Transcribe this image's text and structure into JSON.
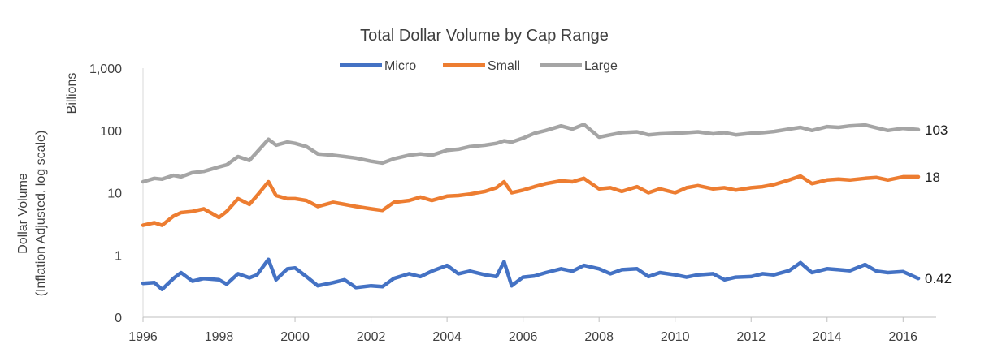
{
  "chart_data": {
    "type": "line",
    "title": "Total Dollar Volume by Cap Range",
    "ylabel_line1": "Dollar Volume",
    "ylabel_line2": "(Inflation Adjusted, log scale)",
    "y_unit": "Billions",
    "y_scale": "log",
    "ylim": [
      0.1,
      1000
    ],
    "xlim": [
      1996,
      2016.4
    ],
    "y_ticks": [
      {
        "value": 0.1,
        "label": "0"
      },
      {
        "value": 1,
        "label": "1"
      },
      {
        "value": 10,
        "label": "10"
      },
      {
        "value": 100,
        "label": "100"
      },
      {
        "value": 1000,
        "label": "1,000"
      }
    ],
    "x_ticks": [
      1996,
      1998,
      2000,
      2002,
      2004,
      2006,
      2008,
      2010,
      2012,
      2014,
      2016
    ],
    "grid": false,
    "legend_position": "top-center",
    "series": [
      {
        "name": "Micro",
        "color": "#4472c4",
        "end_label": "0.42",
        "points": [
          [
            1996.0,
            0.35
          ],
          [
            1996.3,
            0.36
          ],
          [
            1996.5,
            0.28
          ],
          [
            1996.8,
            0.42
          ],
          [
            1997.0,
            0.52
          ],
          [
            1997.3,
            0.38
          ],
          [
            1997.6,
            0.42
          ],
          [
            1998.0,
            0.4
          ],
          [
            1998.2,
            0.34
          ],
          [
            1998.5,
            0.5
          ],
          [
            1998.8,
            0.43
          ],
          [
            1999.0,
            0.48
          ],
          [
            1999.3,
            0.85
          ],
          [
            1999.5,
            0.4
          ],
          [
            1999.8,
            0.6
          ],
          [
            2000.0,
            0.62
          ],
          [
            2000.3,
            0.45
          ],
          [
            2000.6,
            0.32
          ],
          [
            2001.0,
            0.36
          ],
          [
            2001.3,
            0.4
          ],
          [
            2001.6,
            0.3
          ],
          [
            2002.0,
            0.32
          ],
          [
            2002.3,
            0.31
          ],
          [
            2002.6,
            0.42
          ],
          [
            2003.0,
            0.5
          ],
          [
            2003.3,
            0.45
          ],
          [
            2003.6,
            0.55
          ],
          [
            2004.0,
            0.68
          ],
          [
            2004.3,
            0.5
          ],
          [
            2004.6,
            0.55
          ],
          [
            2005.0,
            0.48
          ],
          [
            2005.3,
            0.45
          ],
          [
            2005.5,
            0.78
          ],
          [
            2005.7,
            0.32
          ],
          [
            2006.0,
            0.44
          ],
          [
            2006.3,
            0.46
          ],
          [
            2006.6,
            0.52
          ],
          [
            2007.0,
            0.6
          ],
          [
            2007.3,
            0.55
          ],
          [
            2007.6,
            0.68
          ],
          [
            2008.0,
            0.6
          ],
          [
            2008.3,
            0.5
          ],
          [
            2008.6,
            0.58
          ],
          [
            2009.0,
            0.6
          ],
          [
            2009.3,
            0.45
          ],
          [
            2009.6,
            0.52
          ],
          [
            2010.0,
            0.48
          ],
          [
            2010.3,
            0.44
          ],
          [
            2010.6,
            0.48
          ],
          [
            2011.0,
            0.5
          ],
          [
            2011.3,
            0.4
          ],
          [
            2011.6,
            0.44
          ],
          [
            2012.0,
            0.45
          ],
          [
            2012.3,
            0.5
          ],
          [
            2012.6,
            0.48
          ],
          [
            2013.0,
            0.56
          ],
          [
            2013.3,
            0.75
          ],
          [
            2013.6,
            0.52
          ],
          [
            2014.0,
            0.6
          ],
          [
            2014.3,
            0.58
          ],
          [
            2014.6,
            0.56
          ],
          [
            2015.0,
            0.7
          ],
          [
            2015.3,
            0.55
          ],
          [
            2015.6,
            0.52
          ],
          [
            2016.0,
            0.54
          ],
          [
            2016.4,
            0.42
          ]
        ]
      },
      {
        "name": "Small",
        "color": "#ed7d31",
        "end_label": "18",
        "points": [
          [
            1996.0,
            3.0
          ],
          [
            1996.3,
            3.3
          ],
          [
            1996.5,
            3.0
          ],
          [
            1996.8,
            4.2
          ],
          [
            1997.0,
            4.8
          ],
          [
            1997.3,
            5.0
          ],
          [
            1997.6,
            5.5
          ],
          [
            1998.0,
            4.0
          ],
          [
            1998.2,
            5.0
          ],
          [
            1998.5,
            8.0
          ],
          [
            1998.8,
            6.5
          ],
          [
            1999.0,
            9.0
          ],
          [
            1999.3,
            15.0
          ],
          [
            1999.5,
            9.0
          ],
          [
            1999.8,
            8.0
          ],
          [
            2000.0,
            8.0
          ],
          [
            2000.3,
            7.5
          ],
          [
            2000.6,
            6.0
          ],
          [
            2001.0,
            7.0
          ],
          [
            2001.3,
            6.5
          ],
          [
            2001.6,
            6.0
          ],
          [
            2002.0,
            5.5
          ],
          [
            2002.3,
            5.2
          ],
          [
            2002.6,
            7.0
          ],
          [
            2003.0,
            7.5
          ],
          [
            2003.3,
            8.5
          ],
          [
            2003.6,
            7.5
          ],
          [
            2004.0,
            8.8
          ],
          [
            2004.3,
            9.0
          ],
          [
            2004.6,
            9.5
          ],
          [
            2005.0,
            10.5
          ],
          [
            2005.3,
            12.0
          ],
          [
            2005.5,
            15.0
          ],
          [
            2005.7,
            10.0
          ],
          [
            2006.0,
            11.0
          ],
          [
            2006.3,
            12.5
          ],
          [
            2006.6,
            14.0
          ],
          [
            2007.0,
            15.5
          ],
          [
            2007.3,
            15.0
          ],
          [
            2007.6,
            17.0
          ],
          [
            2008.0,
            11.5
          ],
          [
            2008.3,
            12.0
          ],
          [
            2008.6,
            10.5
          ],
          [
            2009.0,
            12.5
          ],
          [
            2009.3,
            10.0
          ],
          [
            2009.6,
            11.5
          ],
          [
            2010.0,
            10.0
          ],
          [
            2010.3,
            12.0
          ],
          [
            2010.6,
            13.0
          ],
          [
            2011.0,
            11.5
          ],
          [
            2011.3,
            12.0
          ],
          [
            2011.6,
            11.0
          ],
          [
            2012.0,
            12.0
          ],
          [
            2012.3,
            12.5
          ],
          [
            2012.6,
            13.5
          ],
          [
            2013.0,
            16.0
          ],
          [
            2013.3,
            18.5
          ],
          [
            2013.6,
            14.0
          ],
          [
            2014.0,
            16.0
          ],
          [
            2014.3,
            16.5
          ],
          [
            2014.6,
            16.0
          ],
          [
            2015.0,
            17.0
          ],
          [
            2015.3,
            17.5
          ],
          [
            2015.6,
            16.0
          ],
          [
            2016.0,
            18.0
          ],
          [
            2016.4,
            18.0
          ]
        ]
      },
      {
        "name": "Large",
        "color": "#a5a5a5",
        "end_label": "103",
        "points": [
          [
            1996.0,
            15.0
          ],
          [
            1996.3,
            17.0
          ],
          [
            1996.5,
            16.5
          ],
          [
            1996.8,
            19.0
          ],
          [
            1997.0,
            18.0
          ],
          [
            1997.3,
            21.0
          ],
          [
            1997.6,
            22.0
          ],
          [
            1998.0,
            26.0
          ],
          [
            1998.2,
            28.0
          ],
          [
            1998.5,
            38.0
          ],
          [
            1998.8,
            33.0
          ],
          [
            1999.0,
            45.0
          ],
          [
            1999.3,
            72.0
          ],
          [
            1999.5,
            58.0
          ],
          [
            1999.8,
            65.0
          ],
          [
            2000.0,
            62.0
          ],
          [
            2000.3,
            55.0
          ],
          [
            2000.6,
            42.0
          ],
          [
            2001.0,
            40.0
          ],
          [
            2001.3,
            38.0
          ],
          [
            2001.6,
            36.0
          ],
          [
            2002.0,
            32.0
          ],
          [
            2002.3,
            30.0
          ],
          [
            2002.6,
            35.0
          ],
          [
            2003.0,
            40.0
          ],
          [
            2003.3,
            42.0
          ],
          [
            2003.6,
            40.0
          ],
          [
            2004.0,
            48.0
          ],
          [
            2004.3,
            50.0
          ],
          [
            2004.6,
            55.0
          ],
          [
            2005.0,
            58.0
          ],
          [
            2005.3,
            62.0
          ],
          [
            2005.5,
            68.0
          ],
          [
            2005.7,
            65.0
          ],
          [
            2006.0,
            75.0
          ],
          [
            2006.3,
            90.0
          ],
          [
            2006.6,
            100.0
          ],
          [
            2007.0,
            118.0
          ],
          [
            2007.3,
            105.0
          ],
          [
            2007.6,
            125.0
          ],
          [
            2008.0,
            78.0
          ],
          [
            2008.3,
            85.0
          ],
          [
            2008.6,
            92.0
          ],
          [
            2009.0,
            95.0
          ],
          [
            2009.3,
            85.0
          ],
          [
            2009.6,
            88.0
          ],
          [
            2010.0,
            90.0
          ],
          [
            2010.3,
            92.0
          ],
          [
            2010.6,
            95.0
          ],
          [
            2011.0,
            88.0
          ],
          [
            2011.3,
            92.0
          ],
          [
            2011.6,
            85.0
          ],
          [
            2012.0,
            90.0
          ],
          [
            2012.3,
            92.0
          ],
          [
            2012.6,
            96.0
          ],
          [
            2013.0,
            105.0
          ],
          [
            2013.3,
            112.0
          ],
          [
            2013.6,
            100.0
          ],
          [
            2014.0,
            115.0
          ],
          [
            2014.3,
            112.0
          ],
          [
            2014.6,
            118.0
          ],
          [
            2015.0,
            122.0
          ],
          [
            2015.3,
            110.0
          ],
          [
            2015.6,
            100.0
          ],
          [
            2016.0,
            108.0
          ],
          [
            2016.4,
            103.0
          ]
        ]
      }
    ]
  }
}
